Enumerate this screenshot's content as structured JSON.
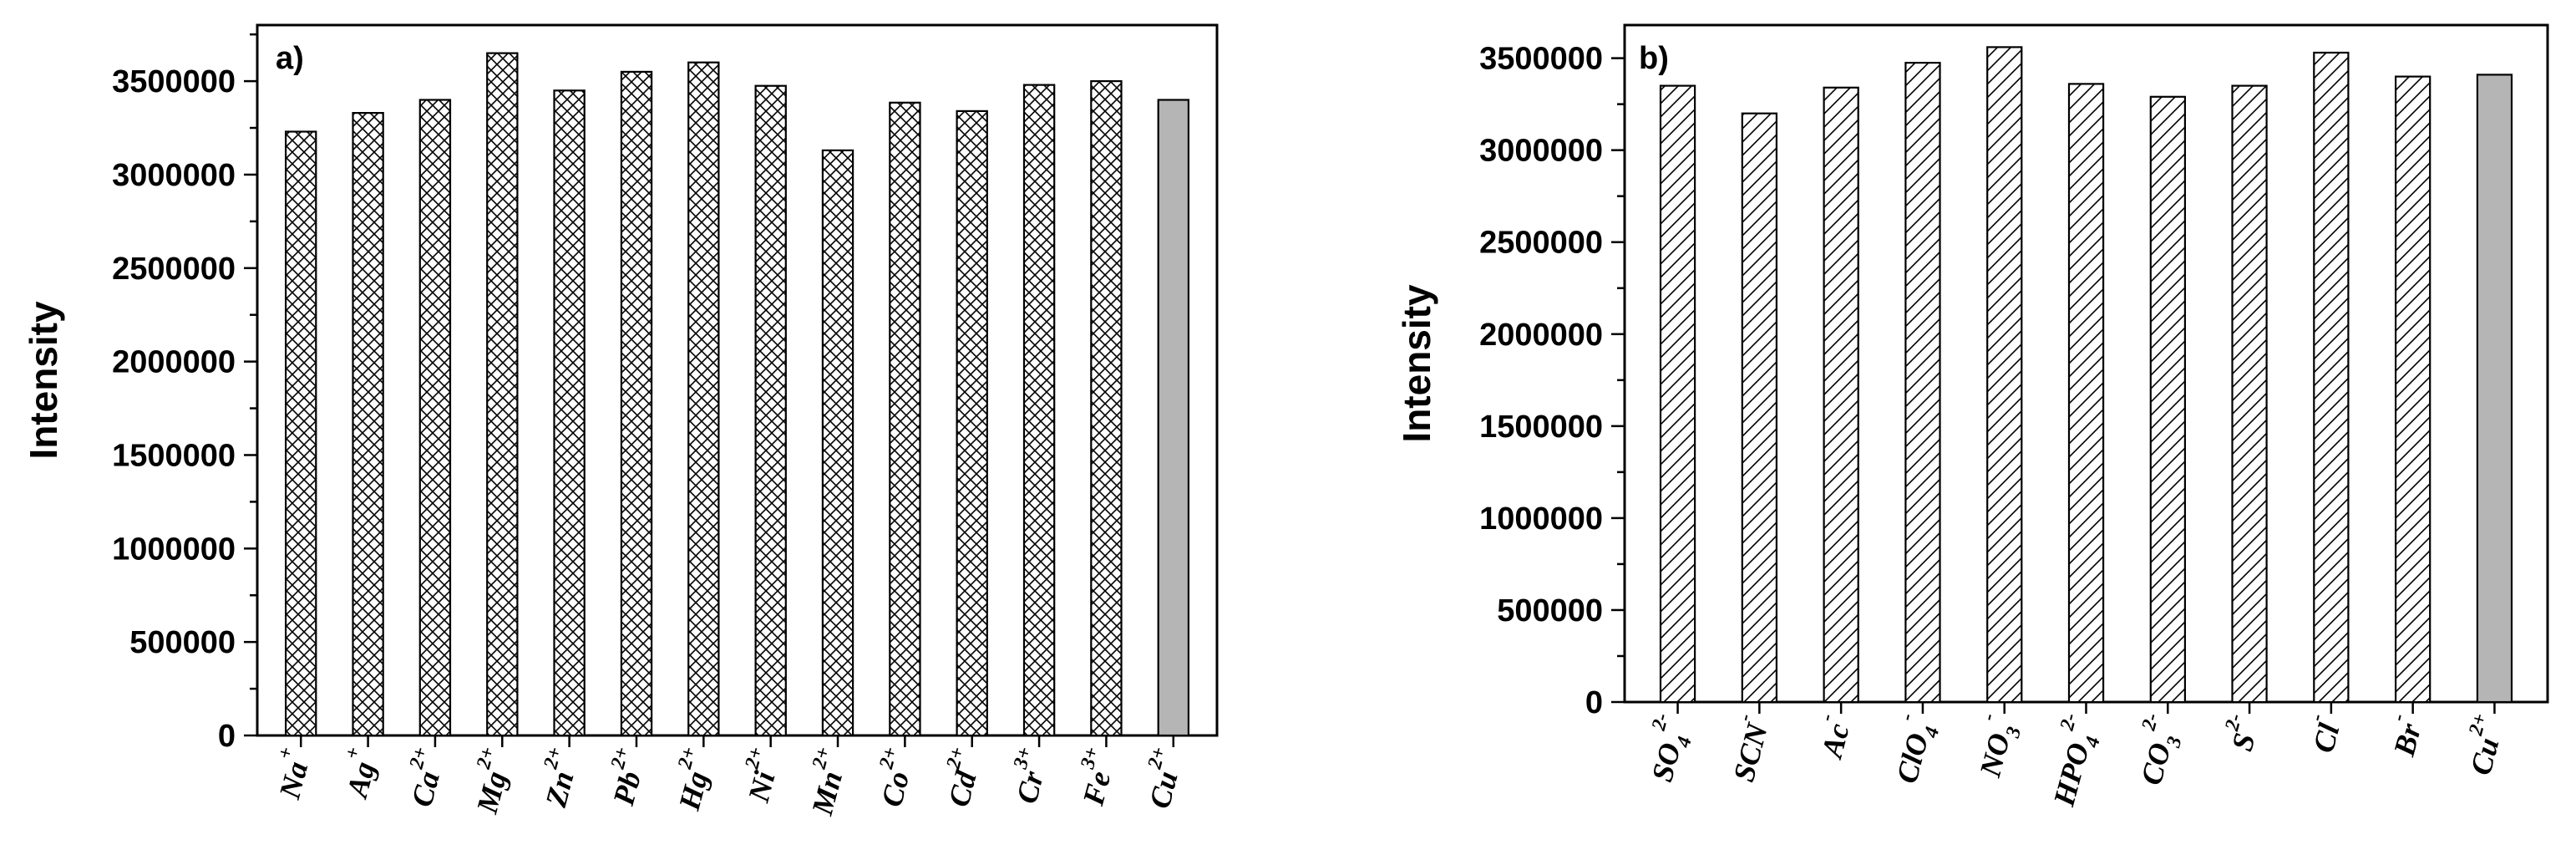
{
  "chart_data": [
    {
      "type": "bar",
      "panel_label": "a)",
      "title": "",
      "xlabel": "",
      "ylabel": "Intensity",
      "ylim": [
        0,
        3800000
      ],
      "yticks": [
        0,
        500000,
        1000000,
        1500000,
        2000000,
        2500000,
        3000000,
        3500000
      ],
      "ytick_labels": [
        "0",
        "500000",
        "1000000",
        "1500000",
        "2000000",
        "2500000",
        "3000000",
        "3500000"
      ],
      "grid": false,
      "legend": "none",
      "categories": [
        {
          "base": "Na",
          "sup": "+",
          "sub": ""
        },
        {
          "base": "Ag",
          "sup": "+",
          "sub": ""
        },
        {
          "base": "Ca",
          "sup": "2+",
          "sub": ""
        },
        {
          "base": "Mg",
          "sup": "2+",
          "sub": ""
        },
        {
          "base": "Zn",
          "sup": "2+",
          "sub": ""
        },
        {
          "base": "Pb",
          "sup": "2+",
          "sub": ""
        },
        {
          "base": "Hg",
          "sup": "2+",
          "sub": ""
        },
        {
          "base": "Ni",
          "sup": "2+",
          "sub": ""
        },
        {
          "base": "Mn",
          "sup": "2+",
          "sub": ""
        },
        {
          "base": "Co",
          "sup": "2+",
          "sub": ""
        },
        {
          "base": "Cd",
          "sup": "2+",
          "sub": ""
        },
        {
          "base": "Cr",
          "sup": "3+",
          "sub": ""
        },
        {
          "base": "Fe",
          "sup": "3+",
          "sub": ""
        },
        {
          "base": "Cu",
          "sup": "2+",
          "sub": ""
        }
      ],
      "values": [
        3230000,
        3330000,
        3400000,
        3650000,
        3450000,
        3550000,
        3600000,
        3475000,
        3130000,
        3385000,
        3340000,
        3480000,
        3500000,
        3400000
      ],
      "highlight_index": 13,
      "bar_pattern": "crosshatch",
      "highlight_color": "#b5b5b5"
    },
    {
      "type": "bar",
      "panel_label": "b)",
      "title": "",
      "xlabel": "",
      "ylabel": "Intensity",
      "ylim": [
        0,
        3680000
      ],
      "yticks": [
        0,
        500000,
        1000000,
        1500000,
        2000000,
        2500000,
        3000000,
        3500000
      ],
      "ytick_labels": [
        "0",
        "500000",
        "1000000",
        "1500000",
        "2000000",
        "2500000",
        "3000000",
        "3500000"
      ],
      "grid": false,
      "legend": "none",
      "categories": [
        {
          "base": "SO",
          "sub": "4",
          "sup": "2-"
        },
        {
          "base": "SCN",
          "sub": "",
          "sup": "-"
        },
        {
          "base": "Ac",
          "sub": "",
          "sup": "-"
        },
        {
          "base": "ClO",
          "sub": "4",
          "sup": "-"
        },
        {
          "base": "NO",
          "sub": "3",
          "sup": "-"
        },
        {
          "base": "HPO",
          "sub": "4",
          "sup": "2-"
        },
        {
          "base": "CO",
          "sub": "3",
          "sup": "2-"
        },
        {
          "base": "S",
          "sub": "",
          "sup": "2-"
        },
        {
          "base": "Cl",
          "sub": "",
          "sup": "-"
        },
        {
          "base": "Br",
          "sub": "",
          "sup": "-"
        },
        {
          "base": "Cu",
          "sub": "",
          "sup": "2+"
        }
      ],
      "values": [
        3350000,
        3200000,
        3340000,
        3475000,
        3560000,
        3360000,
        3290000,
        3350000,
        3530000,
        3400000,
        3410000
      ],
      "highlight_index": 10,
      "bar_pattern": "diagonal",
      "highlight_color": "#b5b5b5"
    }
  ]
}
